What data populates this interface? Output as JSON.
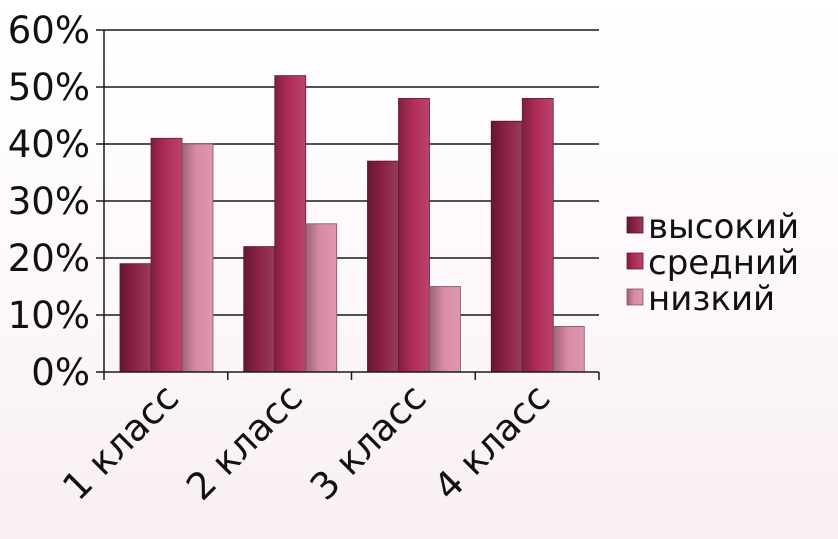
{
  "chart_data": {
    "type": "bar",
    "categories": [
      "1 класс",
      "2 класс",
      "3 класс",
      "4 класс"
    ],
    "series": [
      {
        "name": "высокий",
        "values": [
          19,
          22,
          37,
          44
        ],
        "color": "#8a2046"
      },
      {
        "name": "средний",
        "values": [
          41,
          52,
          48,
          48
        ],
        "color": "#b02b5a"
      },
      {
        "name": "низкий",
        "values": [
          40,
          26,
          15,
          8
        ],
        "color": "#d88aa5"
      }
    ],
    "ylim": [
      0,
      60
    ],
    "yticks": [
      0,
      10,
      20,
      30,
      40,
      50,
      60
    ],
    "ytick_labels": [
      "0%",
      "10%",
      "20%",
      "30%",
      "40%",
      "50%",
      "60%"
    ],
    "grid": true,
    "legend_position": "right",
    "title": "",
    "xlabel": "",
    "ylabel": ""
  }
}
